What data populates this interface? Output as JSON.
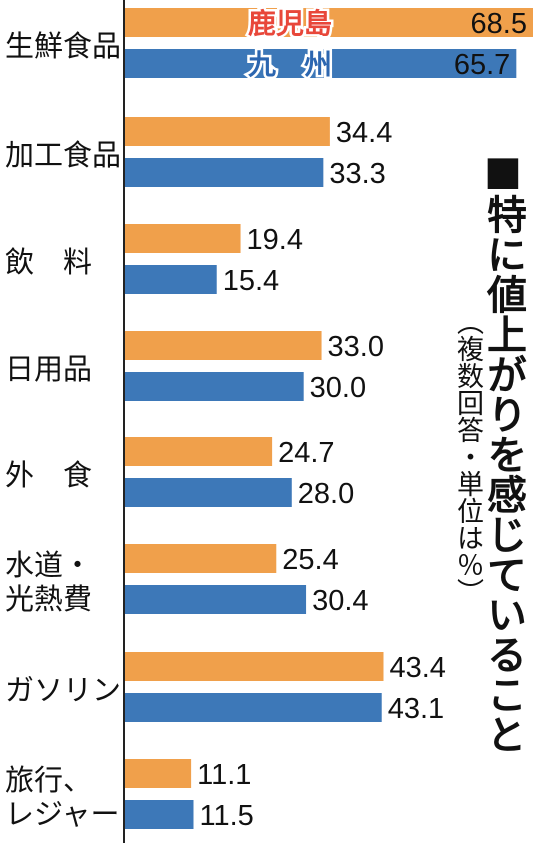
{
  "chart_data": {
    "type": "bar",
    "orientation": "horizontal",
    "title": "■特に値上がりを感じていること",
    "subtitle": "（複数回答・単位は％）",
    "categories": [
      "生鮮食品",
      "加工食品",
      "飲　料",
      "日用品",
      "外　食",
      "水道・光熱費",
      "ガソリン",
      "旅行、レジャー"
    ],
    "category_lines": [
      [
        "生鮮食品"
      ],
      [
        "加工食品"
      ],
      [
        "飲　料"
      ],
      [
        "日用品"
      ],
      [
        "外　食"
      ],
      [
        "水道・",
        "光熱費"
      ],
      [
        "ガソリン"
      ],
      [
        "旅行、",
        "レジャー"
      ]
    ],
    "series": [
      {
        "name": "鹿児島",
        "color": "#F0A04B",
        "values": [
          68.5,
          34.4,
          19.4,
          33.0,
          24.7,
          25.4,
          43.4,
          11.1
        ]
      },
      {
        "name": "九　州",
        "color": "#3D78B8",
        "values": [
          65.7,
          33.3,
          15.4,
          30.0,
          28.0,
          30.4,
          43.1,
          11.5
        ]
      }
    ],
    "xlim": [
      0,
      68.5
    ],
    "value_labels": [
      [
        "68.5",
        "34.4",
        "19.4",
        "33.0",
        "24.7",
        "25.4",
        "43.4",
        "11.1"
      ],
      [
        "65.7",
        "33.3",
        "15.4",
        "30.0",
        "28.0",
        "30.4",
        "43.1",
        "11.5"
      ]
    ],
    "legend": "inside-first-bars",
    "grid": false
  }
}
